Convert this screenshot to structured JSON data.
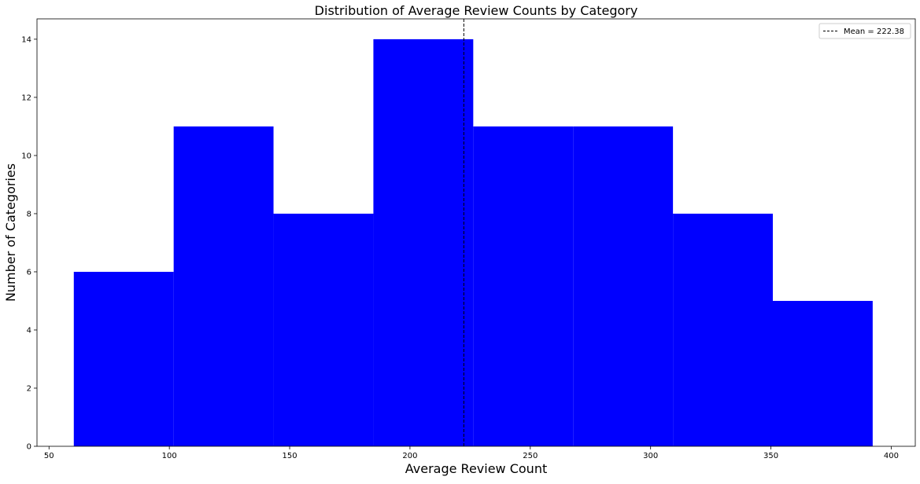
{
  "chart_data": {
    "type": "bar",
    "subtype": "histogram",
    "title": "Distribution of Average Review Counts by Category",
    "xlabel": "Average Review Count",
    "ylabel": "Number of Categories",
    "xlim": [
      45,
      410
    ],
    "ylim": [
      0,
      14.7
    ],
    "x_ticks": [
      50,
      100,
      150,
      200,
      250,
      300,
      350,
      400
    ],
    "y_ticks": [
      0,
      2,
      4,
      6,
      8,
      10,
      12,
      14
    ],
    "bin_edges": [
      60.3,
      101.8,
      143.3,
      184.8,
      226.3,
      267.8,
      309.3,
      350.8,
      392.3
    ],
    "values": [
      6,
      11,
      8,
      14,
      11,
      11,
      8,
      5
    ],
    "bar_color": "#0000ff",
    "grid": false,
    "mean_line": {
      "value": 222.38,
      "style": "dashed",
      "color": "#000000",
      "label": "Mean = 222.38"
    },
    "legend_position": "top-right"
  }
}
